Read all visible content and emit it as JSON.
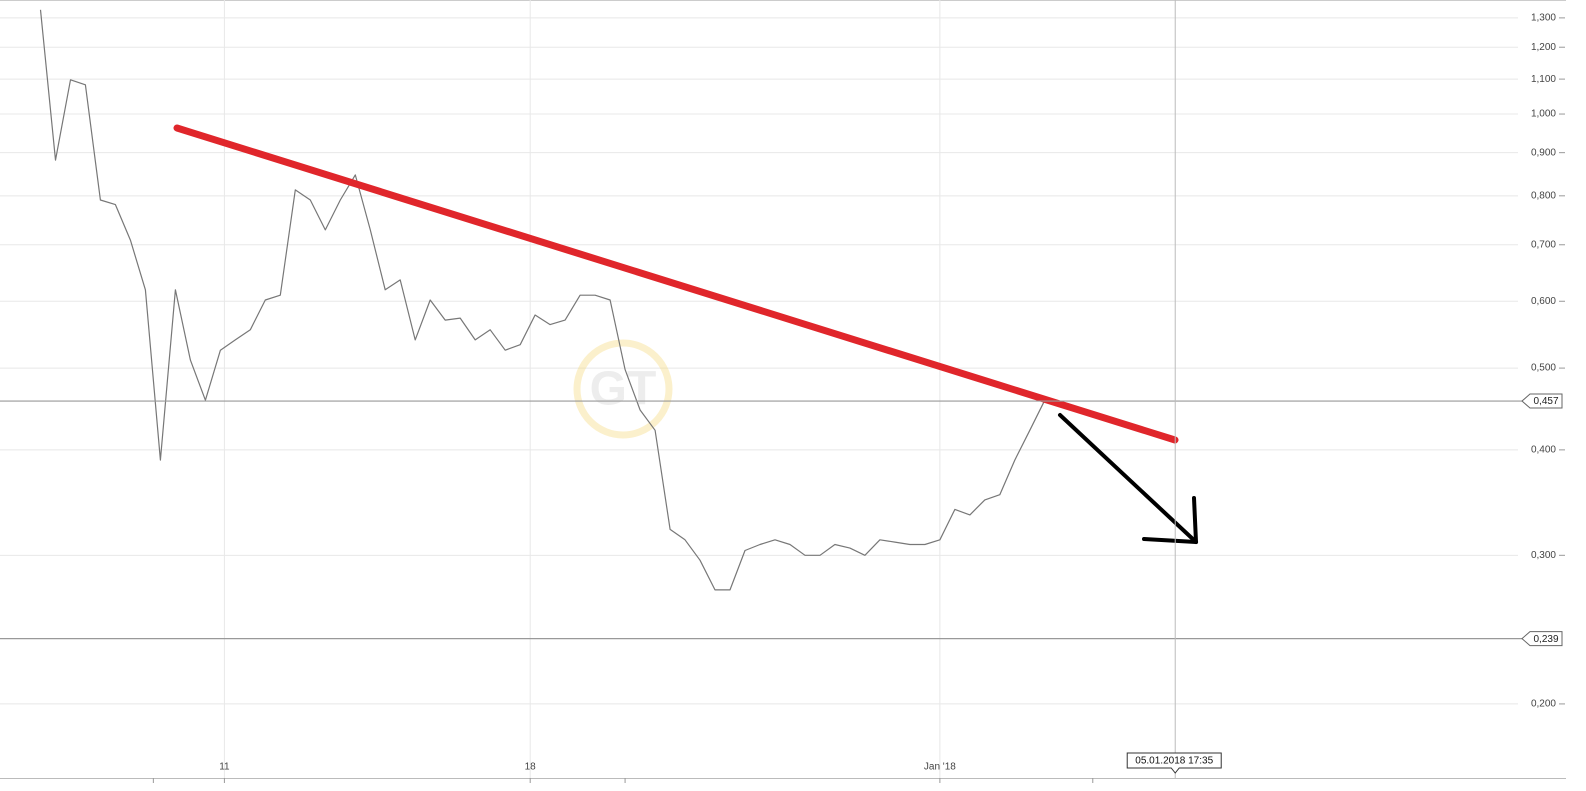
{
  "chart_data": {
    "type": "line",
    "log_y": true,
    "grid": true,
    "x": [
      0,
      1,
      2,
      3,
      4,
      5,
      6,
      7,
      8,
      9,
      10,
      11,
      12,
      13,
      14,
      15,
      16,
      17,
      18,
      19,
      20,
      21,
      22,
      23,
      24,
      25,
      26,
      27,
      28,
      29,
      30,
      31,
      32,
      33,
      34,
      35,
      36,
      37,
      38,
      39,
      40,
      41,
      42,
      43,
      44,
      45,
      46,
      47,
      48,
      49,
      50,
      51,
      52,
      53,
      54,
      55,
      56,
      57,
      58,
      59,
      60,
      61,
      62,
      63,
      64,
      65,
      66,
      67
    ],
    "series": [
      {
        "color": "#777777",
        "values": [
          1.329,
          0.882,
          1.098,
          1.083,
          0.791,
          0.781,
          0.709,
          0.619,
          0.389,
          0.619,
          0.511,
          0.458,
          0.525,
          0.54,
          0.555,
          0.602,
          0.61,
          0.813,
          0.791,
          0.729,
          0.791,
          0.847,
          0.729,
          0.619,
          0.636,
          0.54,
          0.602,
          0.57,
          0.573,
          0.54,
          0.555,
          0.525,
          0.533,
          0.578,
          0.563,
          0.57,
          0.61,
          0.61,
          0.602,
          0.498,
          0.446,
          0.422,
          0.322,
          0.313,
          0.296,
          0.273,
          0.273,
          0.304,
          0.309,
          0.313,
          0.309,
          0.3,
          0.3,
          0.309,
          0.306,
          0.3,
          0.313,
          0.311,
          0.309,
          0.309,
          0.313,
          0.34,
          0.335,
          0.349,
          0.354,
          0.389,
          0.422,
          0.458
        ]
      }
    ],
    "xlim": [
      -2.7,
      97.7
    ],
    "xticks": [
      {
        "value": 12.27,
        "label": "11"
      },
      {
        "value": 32.67,
        "label": "18"
      },
      {
        "value": 60,
        "label": "Jan '18"
      }
    ],
    "minor_xticks": [
      7.53,
      39,
      70.2
    ],
    "ylim": [
      0.1634,
      1.365
    ],
    "yticks": [
      {
        "value": 0.2,
        "label": "0,200"
      },
      {
        "value": 0.3,
        "label": "0,300"
      },
      {
        "value": 0.4,
        "label": "0,400"
      },
      {
        "value": 0.5,
        "label": "0,500"
      },
      {
        "value": 0.6,
        "label": "0,600"
      },
      {
        "value": 0.7,
        "label": "0,700"
      },
      {
        "value": 0.8,
        "label": "0,800"
      },
      {
        "value": 0.9,
        "label": "0,900"
      },
      {
        "value": 1.0,
        "label": "1,000"
      },
      {
        "value": 1.1,
        "label": "1,100"
      },
      {
        "value": 1.2,
        "label": "1,200"
      },
      {
        "value": 1.3,
        "label": "1,300"
      }
    ],
    "price_lines": [
      {
        "value": 0.457,
        "label": "0,457"
      },
      {
        "value": 0.239,
        "label": "0,239"
      }
    ],
    "crosshair": {
      "x": 75.7,
      "label": "05.01.2018 17:35"
    }
  }
}
